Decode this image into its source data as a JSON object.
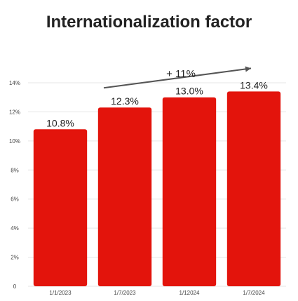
{
  "chart_data": {
    "type": "bar",
    "title": "Internationalization factor",
    "categories": [
      "1/1/2023",
      "1/7/2023",
      "1/12024",
      "1/7/2024"
    ],
    "values": [
      10.8,
      12.3,
      13.0,
      13.4
    ],
    "data_labels": [
      "10.8%",
      "12.3%",
      "13.0%",
      "13.4%"
    ],
    "ylim": [
      0,
      14
    ],
    "yticks": [
      0,
      2,
      4,
      6,
      8,
      10,
      12,
      14
    ],
    "ytick_labels": [
      "0",
      "2%",
      "4%",
      "6%",
      "8%",
      "10%",
      "12%",
      "14%"
    ],
    "xlabel": "",
    "ylabel": "",
    "grid": true,
    "legend": "none",
    "annotation": "+ 11%",
    "colors": {
      "bar": "#e3140c",
      "text": "#222222",
      "tick": "#444444",
      "grid": "#e6e6e6",
      "arrow": "#555555"
    }
  }
}
